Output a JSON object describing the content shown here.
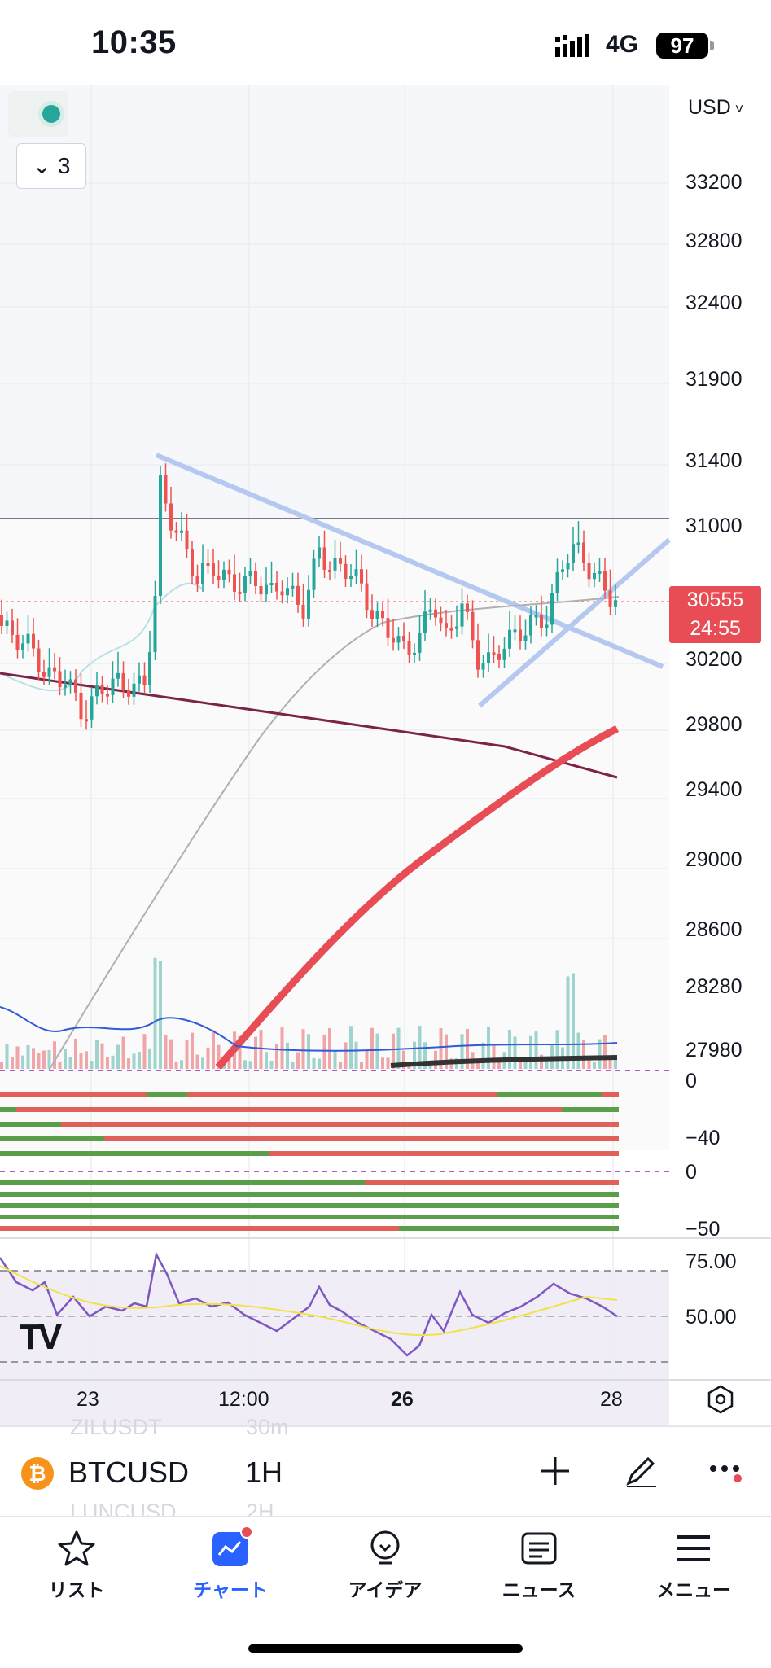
{
  "status_bar": {
    "time": "10:35",
    "network": "4G",
    "battery": "97"
  },
  "chart": {
    "currency": "USD",
    "indicator_count": "3",
    "last_price": "30555",
    "countdown": "24:55",
    "price_ticks": [
      "33200",
      "32800",
      "32400",
      "31900",
      "31400",
      "31000",
      "30200",
      "29800",
      "29400",
      "29000",
      "28600",
      "28280",
      "27980"
    ],
    "osc1_ticks": [
      "0",
      "−40"
    ],
    "osc2_ticks": [
      "0",
      "−50"
    ],
    "rsi_ticks": [
      "75.00",
      "50.00"
    ],
    "time_labels": [
      "23",
      "12:00",
      "26",
      "28"
    ],
    "colors": {
      "up": "#26a69a",
      "down": "#ef5350",
      "trend_line": "#b4c8f0",
      "ema_red": "#e84d55",
      "ma_purple": "#7b2447",
      "rsi": "#7e57c2"
    }
  },
  "symbol_bar": {
    "ghost_top_symbol": "ZILUSDT",
    "ghost_top_interval": "30m",
    "symbol": "BTCUSD",
    "interval": "1H",
    "ghost_bottom_symbol": "LUNCUSD",
    "ghost_bottom_interval": "2H",
    "icons": [
      "bitcoin-icon",
      "plus-icon",
      "pen-icon",
      "more-icon"
    ]
  },
  "tabs": [
    {
      "label": "リスト",
      "icon": "star-icon"
    },
    {
      "label": "チャート",
      "icon": "chart-icon",
      "active": true
    },
    {
      "label": "アイデア",
      "icon": "bulb-icon"
    },
    {
      "label": "ニュース",
      "icon": "news-icon"
    },
    {
      "label": "メニュー",
      "icon": "menu-icon"
    }
  ]
}
